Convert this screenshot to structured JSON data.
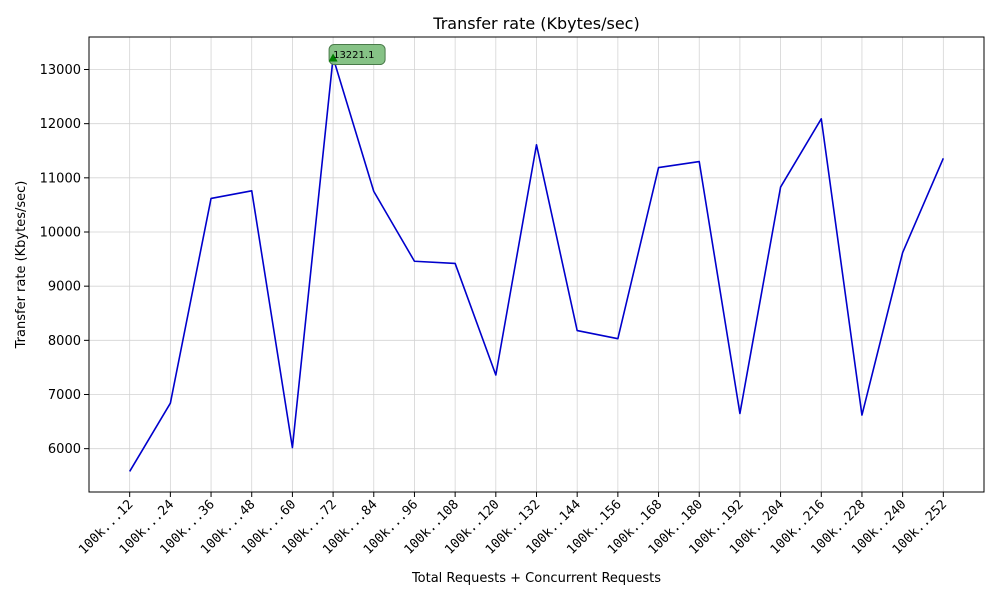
{
  "chart_data": {
    "type": "line",
    "title": "Transfer rate (Kbytes/sec)",
    "xlabel": "Total Requests + Concurrent Requests",
    "ylabel": "Transfer rate (Kbytes/sec)",
    "categories": [
      "100k...12",
      "100k...24",
      "100k...36",
      "100k...48",
      "100k...60",
      "100k...72",
      "100k...84",
      "100k...96",
      "100k..108",
      "100k..120",
      "100k..132",
      "100k..144",
      "100k..156",
      "100k..168",
      "100k..180",
      "100k..192",
      "100k..204",
      "100k..216",
      "100k..228",
      "100k..240",
      "100k..252"
    ],
    "series": [
      {
        "color": "#0000cc",
        "values": [
          5580,
          6840,
          10620,
          10760,
          6020,
          13221.1,
          10750,
          9460,
          9420,
          7360,
          11610,
          8180,
          8030,
          11190,
          11300,
          6650,
          10830,
          12090,
          6620,
          9620,
          11360
        ]
      }
    ],
    "annotation": {
      "text": "13221.1",
      "index": 5,
      "value": 13221.1,
      "box_color": "#80bf80",
      "marker_color": "#008000"
    },
    "yticks": [
      6000,
      7000,
      8000,
      9000,
      10000,
      11000,
      12000,
      13000
    ],
    "ylim": [
      5200,
      13600
    ],
    "grid": true,
    "legend": "none"
  }
}
